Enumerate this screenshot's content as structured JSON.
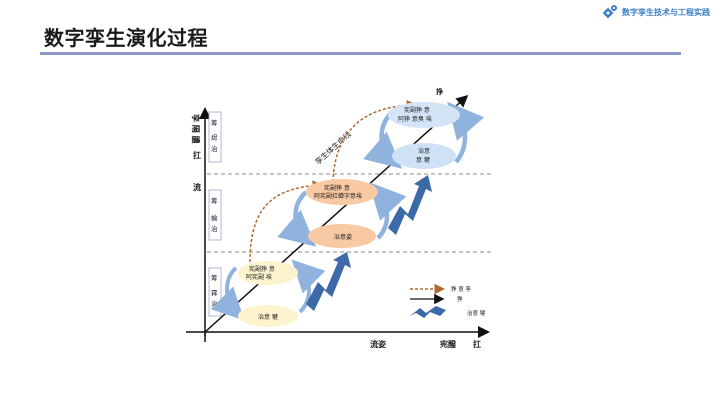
{
  "header": {
    "title": "数字孪生演化过程",
    "brand": "数字孪生技术与工程实践",
    "brand_icon": "gears-icon"
  },
  "diagram": {
    "y_axis_label": "孪 隔 膿",
    "y_axis_tick_1": "扛",
    "y_axis_tick_2": "流",
    "x_axis_label_1": "流姿",
    "x_axis_label_2": "宪醱",
    "x_axis_tick": "扛",
    "arrow_tip_label": "挣",
    "diagonal_label": "孪生体生命线",
    "stages": [
      {
        "side_label": [
          "筹",
          "霖",
          "治"
        ],
        "top_text_1": "宪副狰   意",
        "top_text_2": "阿宪副       埃",
        "bottom_text": "治意   犍"
      },
      {
        "side_label": [
          "筹",
          "蝓",
          "治"
        ],
        "top_text_1": "宪副狰   意",
        "top_text_2": "阿宪副扛蝉字意埃",
        "bottom_text": "治意姿"
      },
      {
        "side_label": [
          "筹",
          "烬",
          "治"
        ],
        "top_text_1": "宪副狰   意",
        "top_text_2": "阿狰   意臭   埃",
        "bottom_text_1": "治意",
        "bottom_text_2": "意   犍"
      }
    ],
    "legend": {
      "dashed_arrow": "狰   意   孪",
      "solid_arrow": "狰",
      "zigzag": "治意   犍"
    },
    "colors": {
      "stage1_top": "#fdf3cf",
      "stage1_bottom": "#fdf3cf",
      "stage2_top": "#f9c9a3",
      "stage2_bottom": "#f9c9a3",
      "stage3_top": "#d4e4f6",
      "stage3_bottom": "#cfe1f5",
      "cycle_arrow": "#8fb3dc",
      "zigzag": "#3c6aa8",
      "dashed_arrow": "#b06a2e"
    }
  }
}
